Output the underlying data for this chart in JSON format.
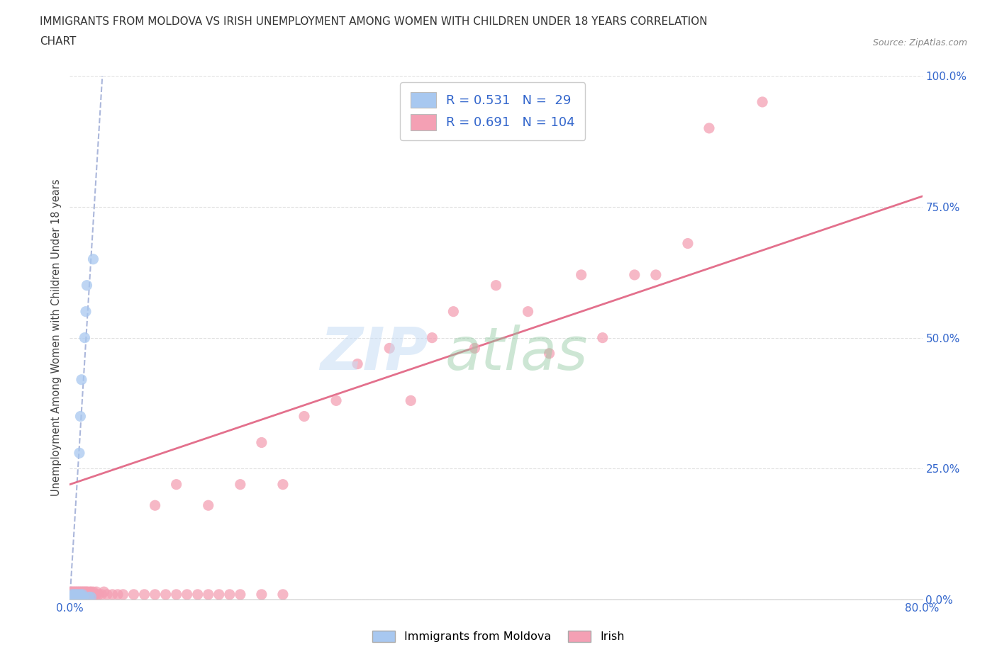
{
  "title_line1": "IMMIGRANTS FROM MOLDOVA VS IRISH UNEMPLOYMENT AMONG WOMEN WITH CHILDREN UNDER 18 YEARS CORRELATION",
  "title_line2": "CHART",
  "source": "Source: ZipAtlas.com",
  "ylabel": "Unemployment Among Women with Children Under 18 years",
  "xlim": [
    0.0,
    0.8
  ],
  "ylim": [
    0.0,
    1.0
  ],
  "xticks": [
    0.0,
    0.1,
    0.2,
    0.3,
    0.4,
    0.5,
    0.6,
    0.7,
    0.8
  ],
  "xticklabels": [
    "0.0%",
    "",
    "",
    "",
    "",
    "",
    "",
    "",
    "80.0%"
  ],
  "yticks": [
    0.0,
    0.25,
    0.5,
    0.75,
    1.0
  ],
  "yticklabels": [
    "0.0%",
    "25.0%",
    "50.0%",
    "75.0%",
    "100.0%"
  ],
  "moldova_color": "#a8c8f0",
  "irish_color": "#f4a0b4",
  "trend_moldova_color": "#8899cc",
  "trend_irish_color": "#e06080",
  "moldova_r": 0.531,
  "moldova_n": 29,
  "irish_r": 0.691,
  "irish_n": 104,
  "legend_text_color": "#3366cc",
  "moldova_x": [
    0.001,
    0.002,
    0.002,
    0.003,
    0.003,
    0.004,
    0.004,
    0.005,
    0.005,
    0.006,
    0.006,
    0.007,
    0.007,
    0.008,
    0.008,
    0.009,
    0.009,
    0.01,
    0.01,
    0.011,
    0.011,
    0.012,
    0.013,
    0.014,
    0.015,
    0.016,
    0.018,
    0.02,
    0.022
  ],
  "moldova_y": [
    0.005,
    0.01,
    0.005,
    0.008,
    0.005,
    0.01,
    0.005,
    0.008,
    0.005,
    0.01,
    0.005,
    0.008,
    0.005,
    0.01,
    0.005,
    0.008,
    0.28,
    0.01,
    0.35,
    0.008,
    0.42,
    0.01,
    0.005,
    0.5,
    0.55,
    0.6,
    0.005,
    0.005,
    0.65
  ],
  "irish_cluster_x": [
    0.001,
    0.001,
    0.001,
    0.001,
    0.002,
    0.002,
    0.002,
    0.002,
    0.003,
    0.003,
    0.003,
    0.003,
    0.004,
    0.004,
    0.004,
    0.004,
    0.005,
    0.005,
    0.005,
    0.005,
    0.006,
    0.006,
    0.006,
    0.006,
    0.007,
    0.007,
    0.007,
    0.007,
    0.008,
    0.008,
    0.008,
    0.009,
    0.009,
    0.009,
    0.01,
    0.01,
    0.01,
    0.011,
    0.011,
    0.012,
    0.012,
    0.013,
    0.013,
    0.014,
    0.014,
    0.015,
    0.015,
    0.016,
    0.016,
    0.017,
    0.017,
    0.018,
    0.019,
    0.02,
    0.02,
    0.021,
    0.022,
    0.023,
    0.025,
    0.025,
    0.027,
    0.03,
    0.032,
    0.035,
    0.04,
    0.045,
    0.05,
    0.06,
    0.07,
    0.08,
    0.09,
    0.1,
    0.11,
    0.12,
    0.13,
    0.14,
    0.15,
    0.16,
    0.18,
    0.2
  ],
  "irish_cluster_y": [
    0.01,
    0.015,
    0.008,
    0.005,
    0.01,
    0.015,
    0.008,
    0.005,
    0.01,
    0.015,
    0.008,
    0.005,
    0.01,
    0.015,
    0.008,
    0.005,
    0.01,
    0.015,
    0.008,
    0.005,
    0.01,
    0.015,
    0.008,
    0.005,
    0.01,
    0.015,
    0.008,
    0.005,
    0.01,
    0.015,
    0.008,
    0.01,
    0.015,
    0.008,
    0.01,
    0.015,
    0.008,
    0.01,
    0.015,
    0.01,
    0.015,
    0.01,
    0.015,
    0.01,
    0.015,
    0.01,
    0.015,
    0.01,
    0.015,
    0.01,
    0.015,
    0.01,
    0.015,
    0.01,
    0.015,
    0.01,
    0.015,
    0.01,
    0.01,
    0.015,
    0.01,
    0.01,
    0.015,
    0.01,
    0.01,
    0.01,
    0.01,
    0.01,
    0.01,
    0.01,
    0.01,
    0.01,
    0.01,
    0.01,
    0.01,
    0.01,
    0.01,
    0.01,
    0.01,
    0.01
  ],
  "irish_spread_x": [
    0.08,
    0.1,
    0.13,
    0.16,
    0.18,
    0.2,
    0.22,
    0.25,
    0.27,
    0.3,
    0.32,
    0.34,
    0.36,
    0.38,
    0.4,
    0.43,
    0.45,
    0.48,
    0.5,
    0.53,
    0.55,
    0.58,
    0.6,
    0.65
  ],
  "irish_spread_y": [
    0.18,
    0.22,
    0.18,
    0.22,
    0.3,
    0.22,
    0.35,
    0.38,
    0.45,
    0.48,
    0.38,
    0.5,
    0.55,
    0.48,
    0.6,
    0.55,
    0.47,
    0.62,
    0.5,
    0.62,
    0.62,
    0.68,
    0.9,
    0.95
  ],
  "irish_trend_x0": 0.0,
  "irish_trend_y0": 0.22,
  "irish_trend_x1": 0.8,
  "irish_trend_y1": 0.77,
  "moldova_trend_x0": 0.0,
  "moldova_trend_y0": 0.0,
  "moldova_trend_x1": 0.022,
  "moldova_trend_y1": 0.72
}
